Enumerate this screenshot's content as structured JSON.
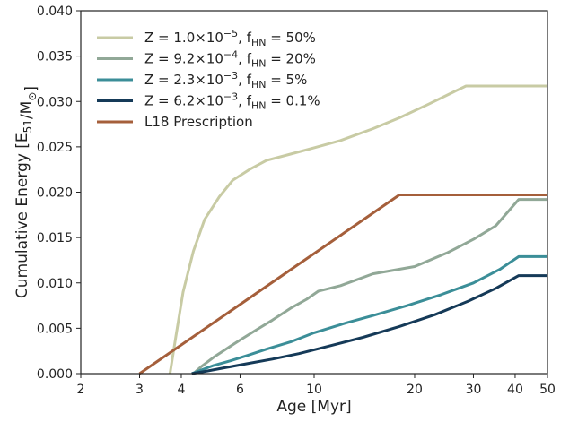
{
  "chart_data": {
    "type": "line",
    "xscale": "log",
    "xlim": [
      2,
      50
    ],
    "ylim": [
      0,
      0.04
    ],
    "xticks": [
      2,
      3,
      4,
      6,
      10,
      20,
      30,
      40,
      50
    ],
    "xtick_labels": [
      "2",
      "3",
      "4",
      "6",
      "10",
      "20",
      "30",
      "40",
      "50"
    ],
    "yticks": [
      0,
      0.005,
      0.01,
      0.015,
      0.02,
      0.025,
      0.03,
      0.035,
      0.04
    ],
    "ytick_labels": [
      "0.000",
      "0.005",
      "0.010",
      "0.015",
      "0.020",
      "0.025",
      "0.030",
      "0.035",
      "0.040"
    ],
    "xlabel": "Age [Myr]",
    "ylabel": "Cumulative Energy [E51/M⊙]",
    "grid": false,
    "legend_position": "top-left",
    "series": [
      {
        "name": "Z = 1.0×10−5, fHN = 50%",
        "color": "#c8cba4",
        "x": [
          3.7,
          3.85,
          4.05,
          4.35,
          4.7,
          5.2,
          5.7,
          6.4,
          7.2,
          8.5,
          10,
          12,
          15,
          18,
          22,
          26,
          28.5,
          35,
          42,
          50
        ],
        "y": [
          0,
          0.004,
          0.009,
          0.0135,
          0.017,
          0.0195,
          0.0213,
          0.0225,
          0.0235,
          0.0242,
          0.0249,
          0.0257,
          0.027,
          0.0282,
          0.0297,
          0.031,
          0.0317,
          0.0317,
          0.0317,
          0.0317
        ]
      },
      {
        "name": "Z = 9.2×10−4, fHN = 20%",
        "color": "#91a897",
        "x": [
          4.35,
          4.6,
          5,
          5.5,
          6,
          6.7,
          7.5,
          8.5,
          9.5,
          10.3,
          12,
          15,
          20,
          25,
          30,
          35,
          41,
          45,
          50
        ],
        "y": [
          0,
          0.0008,
          0.0018,
          0.0028,
          0.0037,
          0.0048,
          0.0059,
          0.0072,
          0.0082,
          0.0091,
          0.0097,
          0.011,
          0.0118,
          0.0133,
          0.0148,
          0.0163,
          0.0192,
          0.0192,
          0.0192
        ]
      },
      {
        "name": "Z = 2.3×10−3, fHN = 5%",
        "color": "#3b8e98",
        "x": [
          4.3,
          4.6,
          5,
          5.6,
          6.3,
          7.2,
          8.5,
          10,
          12.5,
          15,
          19,
          24,
          30,
          36,
          41,
          45,
          50
        ],
        "y": [
          0,
          0.0004,
          0.0009,
          0.0014,
          0.002,
          0.0027,
          0.0035,
          0.0045,
          0.0056,
          0.0064,
          0.0075,
          0.0087,
          0.01,
          0.0115,
          0.0129,
          0.0129,
          0.0129
        ]
      },
      {
        "name": "Z = 6.2×10−3, fHN = 0.1%",
        "color": "#153a58",
        "x": [
          4.3,
          4.8,
          5.5,
          6.3,
          7.5,
          9,
          11,
          14,
          18,
          23,
          29,
          35,
          41,
          45,
          50
        ],
        "y": [
          0,
          0.0003,
          0.0007,
          0.0011,
          0.0016,
          0.0022,
          0.003,
          0.004,
          0.0052,
          0.0065,
          0.008,
          0.0094,
          0.0108,
          0.0108,
          0.0108
        ]
      },
      {
        "name": "L18 Prescription",
        "color": "#a55f3b",
        "x": [
          3,
          18,
          50
        ],
        "y": [
          0,
          0.0197,
          0.0197
        ]
      }
    ]
  }
}
